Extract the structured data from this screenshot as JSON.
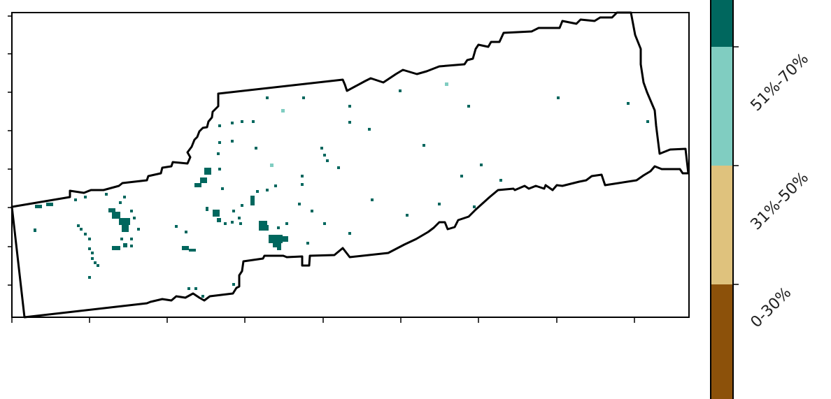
{
  "map": {
    "colors": {
      "dark_teal": "#00675e",
      "light_teal": "#80cdc1",
      "tan": "#dfc27d",
      "brown": "#8c510a",
      "outline": "#000000"
    }
  },
  "legend": {
    "type": "categorical-colorbar",
    "placement": "right",
    "items": [
      {
        "label": "0-30%",
        "color": "#8c510a"
      },
      {
        "label": "31%-50%",
        "color": "#dfc27d"
      },
      {
        "label": "51%-70%",
        "color": "#80cdc1"
      },
      {
        "label": "",
        "color": "#00675e"
      }
    ]
  }
}
